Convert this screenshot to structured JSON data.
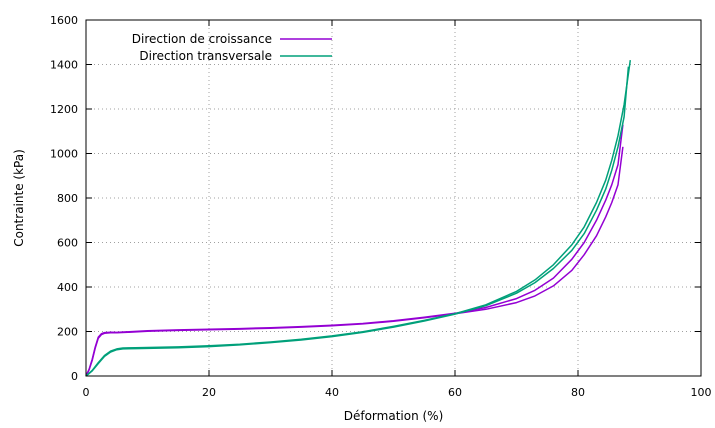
{
  "chart_data": {
    "type": "line",
    "title": "",
    "xlabel": "Déformation (%)",
    "ylabel": "Contrainte (kPa)",
    "xlim": [
      0,
      100
    ],
    "ylim": [
      0,
      1600
    ],
    "xticks": [
      0,
      20,
      40,
      60,
      80,
      100
    ],
    "yticks": [
      0,
      200,
      400,
      600,
      800,
      1000,
      1200,
      1400,
      1600
    ],
    "x_tick_labels": [
      "0",
      "20",
      "40",
      "60",
      "80",
      "100"
    ],
    "y_tick_labels": [
      "0",
      "200",
      "400",
      "600",
      "800",
      "1000",
      "1200",
      "1400",
      "1600"
    ],
    "grid": true,
    "legend_position": "top-left",
    "series": [
      {
        "name": "Direction de croissance",
        "color": "#9400d3",
        "x": [
          0,
          0.5,
          1,
          1.5,
          2,
          2.5,
          3,
          4,
          5,
          7,
          10,
          15,
          20,
          25,
          30,
          35,
          40,
          45,
          50,
          55,
          60,
          65,
          70,
          73,
          76,
          79,
          81,
          83,
          84.5,
          85.5,
          86.5,
          87.3
        ],
        "y": [
          0,
          30,
          75,
          130,
          175,
          190,
          195,
          197,
          196,
          199,
          203,
          207,
          210,
          213,
          217,
          222,
          228,
          236,
          248,
          264,
          282,
          308,
          348,
          385,
          440,
          525,
          600,
          700,
          790,
          860,
          950,
          1130
        ]
      },
      {
        "name": "",
        "color": "#9400d3",
        "x": [
          0,
          0.5,
          1,
          1.5,
          2,
          2.5,
          3,
          4,
          5,
          7,
          10,
          15,
          20,
          25,
          30,
          35,
          40,
          45,
          50,
          55,
          60,
          65,
          70,
          73,
          76,
          79,
          81,
          83,
          84.5,
          85.5,
          86.5,
          87.3
        ],
        "y": [
          0,
          28,
          70,
          125,
          170,
          186,
          192,
          194,
          194,
          197,
          201,
          205,
          208,
          211,
          215,
          220,
          226,
          234,
          246,
          262,
          280,
          300,
          330,
          360,
          405,
          475,
          545,
          630,
          715,
          780,
          860,
          1030
        ]
      },
      {
        "name": "Direction transversale",
        "color": "#00a07a",
        "x": [
          0,
          1,
          2,
          3,
          4,
          5,
          6,
          8,
          10,
          15,
          20,
          25,
          30,
          35,
          40,
          45,
          50,
          55,
          60,
          65,
          70,
          73,
          76,
          79,
          81,
          83,
          84.5,
          85.5,
          86.5,
          87.5,
          88.5
        ],
        "y": [
          0,
          25,
          60,
          92,
          112,
          122,
          126,
          127,
          128,
          131,
          136,
          143,
          153,
          165,
          180,
          199,
          223,
          250,
          280,
          320,
          380,
          432,
          500,
          590,
          670,
          780,
          880,
          970,
          1080,
          1220,
          1420
        ]
      },
      {
        "name": "",
        "color": "#00a07a",
        "x": [
          0,
          1,
          2,
          3,
          4,
          5,
          6,
          8,
          10,
          15,
          20,
          25,
          30,
          35,
          40,
          45,
          50,
          55,
          60,
          65,
          70,
          73,
          76,
          79,
          81,
          83,
          84.5,
          85.5,
          86.5,
          87.5,
          88.2
        ],
        "y": [
          0,
          23,
          56,
          88,
          108,
          118,
          122,
          123,
          124,
          127,
          132,
          140,
          150,
          162,
          177,
          196,
          220,
          247,
          278,
          316,
          372,
          420,
          483,
          565,
          640,
          745,
          840,
          925,
          1030,
          1165,
          1390
        ]
      }
    ]
  }
}
